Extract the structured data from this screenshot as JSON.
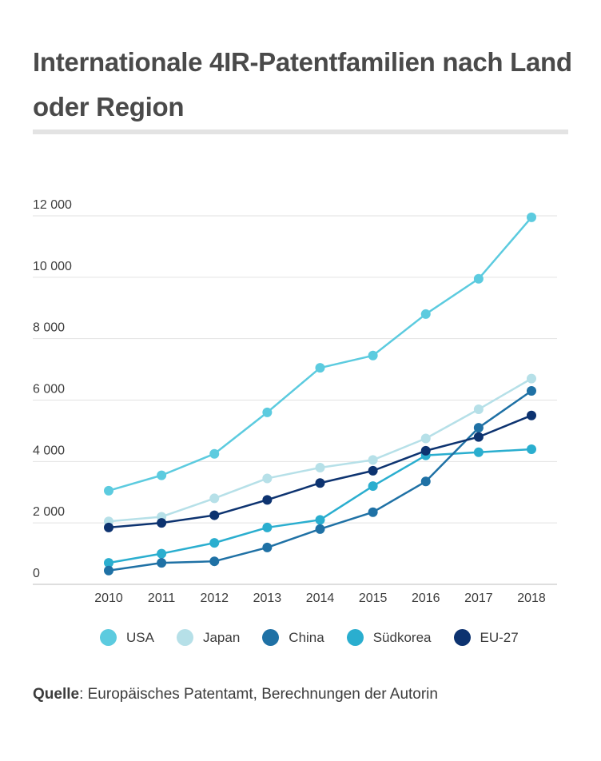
{
  "title": "Internationale 4IR-Patentfamilien nach Land oder Region",
  "source": {
    "label": "Quelle",
    "text": ": Europäisches Patentamt, Berechnungen der Autorin"
  },
  "chart_data": {
    "type": "line",
    "title": "Internationale 4IR-Patentfamilien nach Land oder Region",
    "xlabel": "",
    "ylabel": "",
    "x": [
      "2010",
      "2011",
      "2012",
      "2013",
      "2014",
      "2015",
      "2016",
      "2017",
      "2018"
    ],
    "ylim": [
      0,
      12000
    ],
    "yticks": [
      0,
      2000,
      4000,
      6000,
      8000,
      10000,
      12000
    ],
    "ytick_labels": [
      "0",
      "2 000",
      "4 000",
      "6 000",
      "8 000",
      "10 000",
      "12 000"
    ],
    "grid": true,
    "legend_position": "bottom",
    "series": [
      {
        "name": "USA",
        "color": "#5ccbdf",
        "values": [
          3050,
          3550,
          4250,
          5600,
          7050,
          7450,
          8800,
          9950,
          11950
        ]
      },
      {
        "name": "Japan",
        "color": "#b6e0e8",
        "values": [
          2050,
          2200,
          2800,
          3450,
          3800,
          4050,
          4750,
          5700,
          6700
        ]
      },
      {
        "name": "China",
        "color": "#1f71a5",
        "values": [
          450,
          700,
          750,
          1200,
          1800,
          2350,
          3350,
          5100,
          6300
        ]
      },
      {
        "name": "Südkorea",
        "color": "#2aaecf",
        "values": [
          700,
          1000,
          1350,
          1850,
          2100,
          3200,
          4200,
          4300,
          4400
        ]
      },
      {
        "name": "EU-27",
        "color": "#0d3370",
        "values": [
          1850,
          2000,
          2250,
          2750,
          3300,
          3700,
          4350,
          4800,
          5500
        ]
      }
    ]
  }
}
